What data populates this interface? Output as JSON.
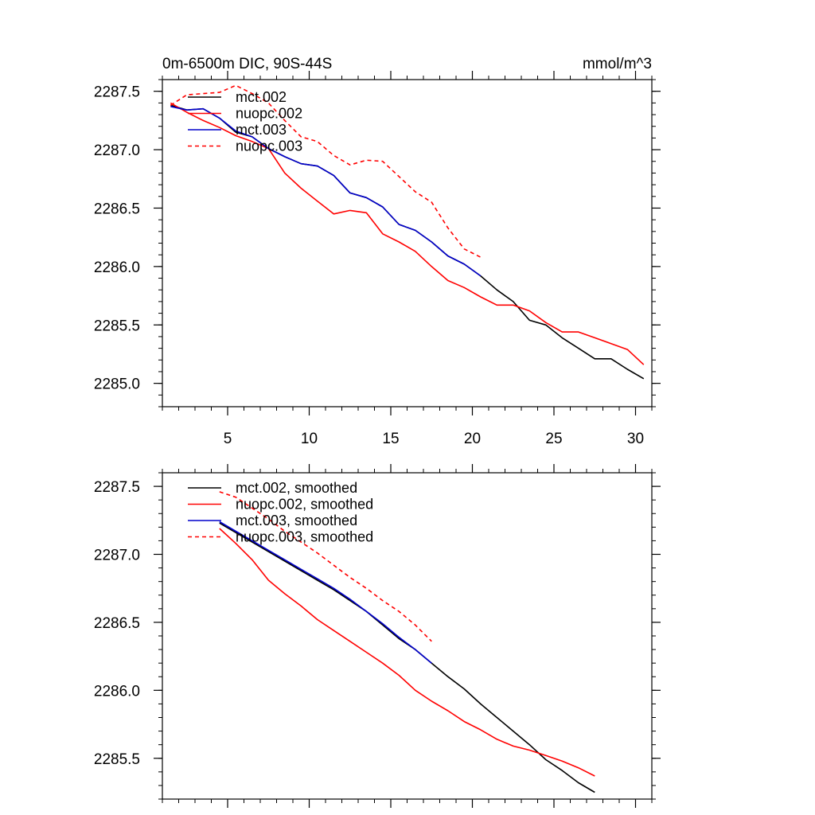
{
  "header": {
    "title": "0m-6500m DIC, 90S-44S",
    "units": "mmol/m^3"
  },
  "colors": {
    "black": "#000000",
    "red": "#ff0000",
    "blue": "#0000cc"
  },
  "chart_data": [
    {
      "type": "line",
      "title": "0m-6500m DIC, 90S-44S",
      "units_label": "mmol/m^3",
      "xlim": [
        1,
        31
      ],
      "ylim": [
        2284.8,
        2287.6
      ],
      "xticks": [
        5,
        10,
        15,
        20,
        25,
        30
      ],
      "xtick_labels": [
        "5",
        "10",
        "15",
        "20",
        "25",
        "30"
      ],
      "yticks": [
        2285.0,
        2285.5,
        2286.0,
        2286.5,
        2287.0,
        2287.5
      ],
      "ytick_labels": [
        "2285.0",
        "2285.5",
        "2286.0",
        "2286.5",
        "2287.0",
        "2287.5"
      ],
      "legend": "top-left",
      "series": [
        {
          "name": "mct.002",
          "color": "#000000",
          "dash": "solid",
          "x": [
            1.5,
            2.5,
            3.5,
            4.5,
            5.5,
            6.5,
            7.5,
            8.5,
            9.5,
            10.5,
            11.5,
            12.5,
            13.5,
            14.5,
            15.5,
            16.5,
            17.5,
            18.5,
            19.5,
            20.5,
            21.5,
            22.5,
            23.5,
            24.5,
            25.5,
            26.5,
            27.5,
            28.5,
            29.5,
            30.5
          ],
          "values": [
            2287.38,
            2287.34,
            2287.35,
            2287.27,
            2287.15,
            2287.11,
            2287.01,
            2286.94,
            2286.88,
            2286.86,
            2286.78,
            2286.63,
            2286.59,
            2286.51,
            2286.36,
            2286.31,
            2286.21,
            2286.09,
            2286.02,
            2285.92,
            2285.8,
            2285.7,
            2285.54,
            2285.5,
            2285.39,
            2285.3,
            2285.21,
            2285.21,
            2285.12,
            2285.04
          ]
        },
        {
          "name": "nuopc.002",
          "color": "#ff0000",
          "dash": "solid",
          "x": [
            1.5,
            2.5,
            3.5,
            4.5,
            5.5,
            6.5,
            7.5,
            8.5,
            9.5,
            10.5,
            11.5,
            12.5,
            13.5,
            14.5,
            15.5,
            16.5,
            17.5,
            18.5,
            19.5,
            20.5,
            21.5,
            22.5,
            23.5,
            24.5,
            25.5,
            26.5,
            27.5,
            28.5,
            29.5,
            30.5
          ],
          "values": [
            2287.4,
            2287.32,
            2287.25,
            2287.19,
            2287.12,
            2287.07,
            2287.01,
            2286.8,
            2286.67,
            2286.56,
            2286.45,
            2286.48,
            2286.46,
            2286.28,
            2286.21,
            2286.13,
            2286.0,
            2285.88,
            2285.82,
            2285.74,
            2285.67,
            2285.67,
            2285.62,
            2285.52,
            2285.44,
            2285.44,
            2285.39,
            2285.34,
            2285.29,
            2285.16
          ]
        },
        {
          "name": "mct.003",
          "color": "#0000cc",
          "dash": "solid",
          "x": [
            1.5,
            2.5,
            3.5,
            4.5,
            5.5,
            6.5,
            7.5,
            8.5,
            9.5,
            10.5,
            11.5,
            12.5,
            13.5,
            14.5,
            15.5,
            16.5,
            17.5,
            18.5,
            19.5,
            20.5
          ],
          "values": [
            2287.37,
            2287.34,
            2287.35,
            2287.27,
            2287.16,
            2287.11,
            2287.01,
            2286.94,
            2286.88,
            2286.86,
            2286.78,
            2286.63,
            2286.59,
            2286.51,
            2286.36,
            2286.31,
            2286.21,
            2286.09,
            2286.02,
            2285.92
          ]
        },
        {
          "name": "nuopc.003",
          "color": "#ff0000",
          "dash": "dashed",
          "x": [
            1.5,
            2.5,
            3.5,
            4.5,
            5.5,
            6.5,
            7.5,
            8.5,
            9.5,
            10.5,
            11.5,
            12.5,
            13.5,
            14.5,
            15.5,
            16.5,
            17.5,
            18.5,
            19.5,
            20.5
          ],
          "values": [
            2287.38,
            2287.47,
            2287.48,
            2287.49,
            2287.55,
            2287.48,
            2287.4,
            2287.25,
            2287.11,
            2287.07,
            2286.95,
            2286.87,
            2286.91,
            2286.9,
            2286.77,
            2286.64,
            2286.55,
            2286.33,
            2286.15,
            2286.08
          ]
        }
      ]
    },
    {
      "type": "line",
      "title": "",
      "xlim": [
        1,
        31
      ],
      "ylim": [
        2285.2,
        2287.6
      ],
      "xticks": [
        5,
        10,
        15,
        20,
        25,
        30
      ],
      "xtick_labels": [],
      "yticks": [
        2285.5,
        2286.0,
        2286.5,
        2287.0,
        2287.5
      ],
      "ytick_labels": [
        "2285.5",
        "2286.0",
        "2286.5",
        "2287.0",
        "2287.5"
      ],
      "legend": "top-left",
      "series": [
        {
          "name": "mct.002, smoothed",
          "color": "#000000",
          "dash": "solid",
          "x": [
            4.5,
            5.5,
            6.5,
            7.5,
            8.5,
            9.5,
            10.5,
            11.5,
            12.5,
            13.5,
            14.5,
            15.5,
            16.5,
            17.5,
            18.5,
            19.5,
            20.5,
            21.5,
            22.5,
            23.5,
            24.5,
            25.5,
            26.5,
            27.5
          ],
          "values": [
            2287.23,
            2287.16,
            2287.09,
            2287.02,
            2286.95,
            2286.88,
            2286.81,
            2286.74,
            2286.66,
            2286.58,
            2286.48,
            2286.38,
            2286.3,
            2286.2,
            2286.1,
            2286.01,
            2285.9,
            2285.8,
            2285.7,
            2285.6,
            2285.49,
            2285.41,
            2285.32,
            2285.25
          ]
        },
        {
          "name": "nuopc.002, smoothed",
          "color": "#ff0000",
          "dash": "solid",
          "x": [
            4.5,
            5.5,
            6.5,
            7.5,
            8.5,
            9.5,
            10.5,
            11.5,
            12.5,
            13.5,
            14.5,
            15.5,
            16.5,
            17.5,
            18.5,
            19.5,
            20.5,
            21.5,
            22.5,
            23.5,
            24.5,
            25.5,
            26.5,
            27.5
          ],
          "values": [
            2287.19,
            2287.08,
            2286.96,
            2286.81,
            2286.71,
            2286.62,
            2286.52,
            2286.44,
            2286.36,
            2286.28,
            2286.2,
            2286.11,
            2286.0,
            2285.92,
            2285.85,
            2285.77,
            2285.71,
            2285.64,
            2285.59,
            2285.56,
            2285.52,
            2285.48,
            2285.43,
            2285.37
          ]
        },
        {
          "name": "mct.003, smoothed",
          "color": "#0000cc",
          "dash": "solid",
          "x": [
            4.5,
            5.5,
            6.5,
            7.5,
            8.5,
            9.5,
            10.5,
            11.5,
            12.5,
            13.5,
            14.5,
            15.5,
            16.5,
            17.5
          ],
          "values": [
            2287.24,
            2287.17,
            2287.1,
            2287.03,
            2286.96,
            2286.89,
            2286.82,
            2286.75,
            2286.67,
            2286.58,
            2286.49,
            2286.39,
            2286.3,
            2286.2
          ]
        },
        {
          "name": "nuopc.003, smoothed",
          "color": "#ff0000",
          "dash": "dashed",
          "x": [
            4.5,
            5.5,
            6.5,
            7.5,
            8.5,
            9.5,
            10.5,
            11.5,
            12.5,
            13.5,
            14.5,
            15.5,
            16.5,
            17.5
          ],
          "values": [
            2287.46,
            2287.42,
            2287.34,
            2287.26,
            2287.17,
            2287.09,
            2287.01,
            2286.92,
            2286.83,
            2286.75,
            2286.66,
            2286.58,
            2286.48,
            2286.36
          ]
        }
      ]
    }
  ]
}
